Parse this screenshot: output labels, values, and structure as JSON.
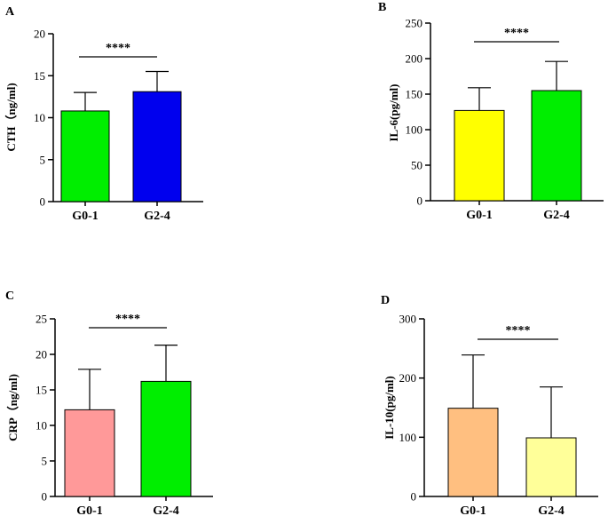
{
  "chart_data": [
    {
      "type": "bar",
      "panel_label": "A",
      "categories": [
        "G0-1",
        "G2-4"
      ],
      "values": [
        10.8,
        13.1
      ],
      "errors": [
        2.2,
        2.4
      ],
      "colors": [
        "#00ee00",
        "#0000ee"
      ],
      "ylabel": "CTH（ng/ml)",
      "ylim": [
        0,
        20
      ],
      "yticks": [
        0,
        5,
        10,
        15,
        20
      ],
      "significance": "****"
    },
    {
      "type": "bar",
      "panel_label": "B",
      "categories": [
        "G0-1",
        "G2-4"
      ],
      "values": [
        127,
        155
      ],
      "errors": [
        32,
        41
      ],
      "colors": [
        "#ffff00",
        "#00ee00"
      ],
      "ylabel": "IL-6(pg/ml)",
      "ylim": [
        0,
        250
      ],
      "yticks": [
        0,
        50,
        100,
        150,
        200,
        250
      ],
      "significance": "****"
    },
    {
      "type": "bar",
      "panel_label": "C",
      "categories": [
        "G0-1",
        "G2-4"
      ],
      "values": [
        12.2,
        16.2
      ],
      "errors": [
        5.7,
        5.1
      ],
      "colors": [
        "#ff9999",
        "#00ee00"
      ],
      "ylabel": "CRP（ng/ml)",
      "ylim": [
        0,
        25
      ],
      "yticks": [
        0,
        5,
        10,
        15,
        20,
        25
      ],
      "significance": "****"
    },
    {
      "type": "bar",
      "panel_label": "D",
      "categories": [
        "G0-1",
        "G2-4"
      ],
      "values": [
        149,
        99
      ],
      "errors": [
        90,
        86
      ],
      "colors": [
        "#ffbf80",
        "#ffff99"
      ],
      "ylabel": "IL-10(pg/ml)",
      "ylim": [
        0,
        300
      ],
      "yticks": [
        0,
        100,
        200,
        300
      ],
      "significance": "****"
    }
  ]
}
